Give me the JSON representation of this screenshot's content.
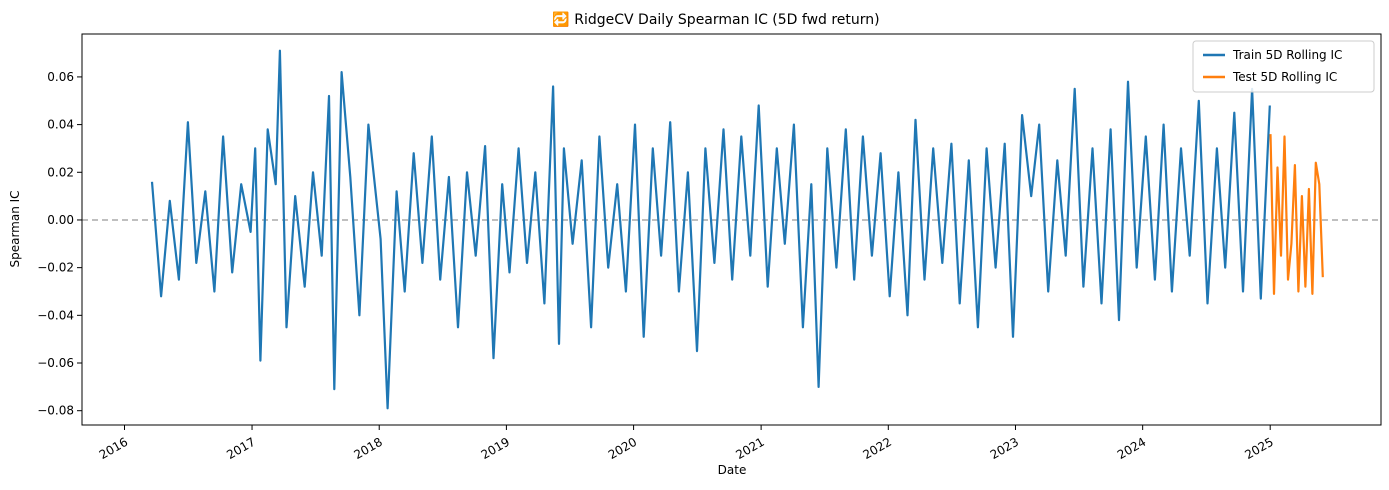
{
  "chart_data": {
    "type": "line",
    "title": "🔁 RidgeCV Daily Spearman IC (5D fwd return)",
    "xlabel": "Date",
    "ylabel": "Spearman IC",
    "xlim": [
      "2015-09-01",
      "2025-11-15"
    ],
    "ylim": [
      -0.086,
      0.078
    ],
    "x_ticks": [
      "2016",
      "2017",
      "2018",
      "2019",
      "2020",
      "2021",
      "2022",
      "2023",
      "2024",
      "2025"
    ],
    "y_ticks": [
      "−0.08",
      "−0.06",
      "−0.04",
      "−0.02",
      "0.00",
      "0.02",
      "0.04",
      "0.06"
    ],
    "y_tick_values": [
      -0.08,
      -0.06,
      -0.04,
      -0.02,
      0.0,
      0.02,
      0.04,
      0.06
    ],
    "reference_line": {
      "y": 0.0,
      "style": "dashed",
      "color": "#aaaaaa"
    },
    "grid": false,
    "legend_position": "top-right",
    "series": [
      {
        "name": "Train 5D Rolling IC",
        "color": "#1f77b4",
        "x": [
          "2016-03-20",
          "2016-04-15",
          "2016-05-10",
          "2016-06-05",
          "2016-07-01",
          "2016-07-25",
          "2016-08-20",
          "2016-09-15",
          "2016-10-10",
          "2016-11-05",
          "2016-12-01",
          "2016-12-28",
          "2017-01-10",
          "2017-01-25",
          "2017-02-15",
          "2017-03-10",
          "2017-03-22",
          "2017-04-10",
          "2017-05-05",
          "2017-06-01",
          "2017-06-25",
          "2017-07-20",
          "2017-08-10",
          "2017-08-25",
          "2017-09-15",
          "2017-10-10",
          "2017-11-05",
          "2017-12-01",
          "2018-01-05",
          "2018-01-25",
          "2018-02-20",
          "2018-03-15",
          "2018-04-10",
          "2018-05-05",
          "2018-06-01",
          "2018-06-25",
          "2018-07-20",
          "2018-08-15",
          "2018-09-10",
          "2018-10-05",
          "2018-11-01",
          "2018-11-25",
          "2018-12-20",
          "2019-01-10",
          "2019-02-05",
          "2019-03-01",
          "2019-03-25",
          "2019-04-20",
          "2019-05-15",
          "2019-06-01",
          "2019-06-15",
          "2019-07-10",
          "2019-08-05",
          "2019-09-01",
          "2019-09-25",
          "2019-10-20",
          "2019-11-15",
          "2019-12-10",
          "2020-01-05",
          "2020-01-30",
          "2020-02-25",
          "2020-03-20",
          "2020-04-15",
          "2020-05-10",
          "2020-06-05",
          "2020-07-01",
          "2020-07-25",
          "2020-08-20",
          "2020-09-15",
          "2020-10-10",
          "2020-11-05",
          "2020-12-01",
          "2020-12-25",
          "2021-01-20",
          "2021-02-15",
          "2021-03-10",
          "2021-04-05",
          "2021-05-01",
          "2021-05-25",
          "2021-06-15",
          "2021-07-10",
          "2021-08-05",
          "2021-09-01",
          "2021-09-25",
          "2021-10-20",
          "2021-11-15",
          "2021-12-10",
          "2022-01-05",
          "2022-01-30",
          "2022-02-25",
          "2022-03-20",
          "2022-04-15",
          "2022-05-10",
          "2022-06-05",
          "2022-07-01",
          "2022-07-25",
          "2022-08-20",
          "2022-09-15",
          "2022-10-10",
          "2022-11-05",
          "2022-12-01",
          "2022-12-25",
          "2023-01-20",
          "2023-02-15",
          "2023-03-10",
          "2023-04-05",
          "2023-05-01",
          "2023-05-25",
          "2023-06-20",
          "2023-07-15",
          "2023-08-10",
          "2023-09-05",
          "2023-10-01",
          "2023-10-25",
          "2023-11-20",
          "2023-12-15",
          "2024-01-10",
          "2024-02-05",
          "2024-03-01",
          "2024-03-25",
          "2024-04-20",
          "2024-05-15",
          "2024-06-10",
          "2024-07-05",
          "2024-08-01",
          "2024-08-25",
          "2024-09-20",
          "2024-10-15",
          "2024-11-10",
          "2024-12-05",
          "2024-12-31"
        ],
        "y": [
          0.016,
          -0.032,
          0.008,
          -0.025,
          0.041,
          -0.018,
          0.012,
          -0.03,
          0.035,
          -0.022,
          0.015,
          -0.005,
          0.03,
          -0.059,
          0.038,
          0.015,
          0.071,
          -0.045,
          0.01,
          -0.028,
          0.02,
          -0.015,
          0.052,
          -0.071,
          0.062,
          0.018,
          -0.04,
          0.04,
          -0.008,
          -0.079,
          0.012,
          -0.03,
          0.028,
          -0.018,
          0.035,
          -0.025,
          0.018,
          -0.045,
          0.02,
          -0.015,
          0.031,
          -0.058,
          0.015,
          -0.022,
          0.03,
          -0.018,
          0.02,
          -0.035,
          0.056,
          -0.052,
          0.03,
          -0.01,
          0.025,
          -0.045,
          0.035,
          -0.02,
          0.015,
          -0.03,
          0.04,
          -0.049,
          0.03,
          -0.015,
          0.041,
          -0.03,
          0.02,
          -0.055,
          0.03,
          -0.018,
          0.038,
          -0.025,
          0.035,
          -0.015,
          0.048,
          -0.028,
          0.03,
          -0.01,
          0.04,
          -0.045,
          0.015,
          -0.07,
          0.03,
          -0.02,
          0.038,
          -0.025,
          0.035,
          -0.015,
          0.028,
          -0.032,
          0.02,
          -0.04,
          0.042,
          -0.025,
          0.03,
          -0.018,
          0.032,
          -0.035,
          0.025,
          -0.045,
          0.03,
          -0.02,
          0.032,
          -0.049,
          0.044,
          0.01,
          0.04,
          -0.03,
          0.025,
          -0.015,
          0.055,
          -0.028,
          0.03,
          -0.035,
          0.038,
          -0.042,
          0.058,
          -0.02,
          0.035,
          -0.025,
          0.04,
          -0.03,
          0.03,
          -0.015,
          0.05,
          -0.035,
          0.03,
          -0.02,
          0.045,
          -0.03,
          0.055,
          -0.033,
          0.048
        ]
      },
      {
        "name": "Test 5D Rolling IC",
        "color": "#ff7f0e",
        "x": [
          "2025-01-02",
          "2025-01-12",
          "2025-01-22",
          "2025-02-01",
          "2025-02-11",
          "2025-02-21",
          "2025-03-03",
          "2025-03-13",
          "2025-03-23",
          "2025-04-02",
          "2025-04-12",
          "2025-04-22",
          "2025-05-02",
          "2025-05-12",
          "2025-05-22",
          "2025-06-01"
        ],
        "y": [
          0.036,
          -0.031,
          0.022,
          -0.015,
          0.035,
          -0.025,
          -0.01,
          0.023,
          -0.03,
          0.01,
          -0.028,
          0.013,
          -0.031,
          0.024,
          0.015,
          -0.024
        ]
      }
    ]
  }
}
